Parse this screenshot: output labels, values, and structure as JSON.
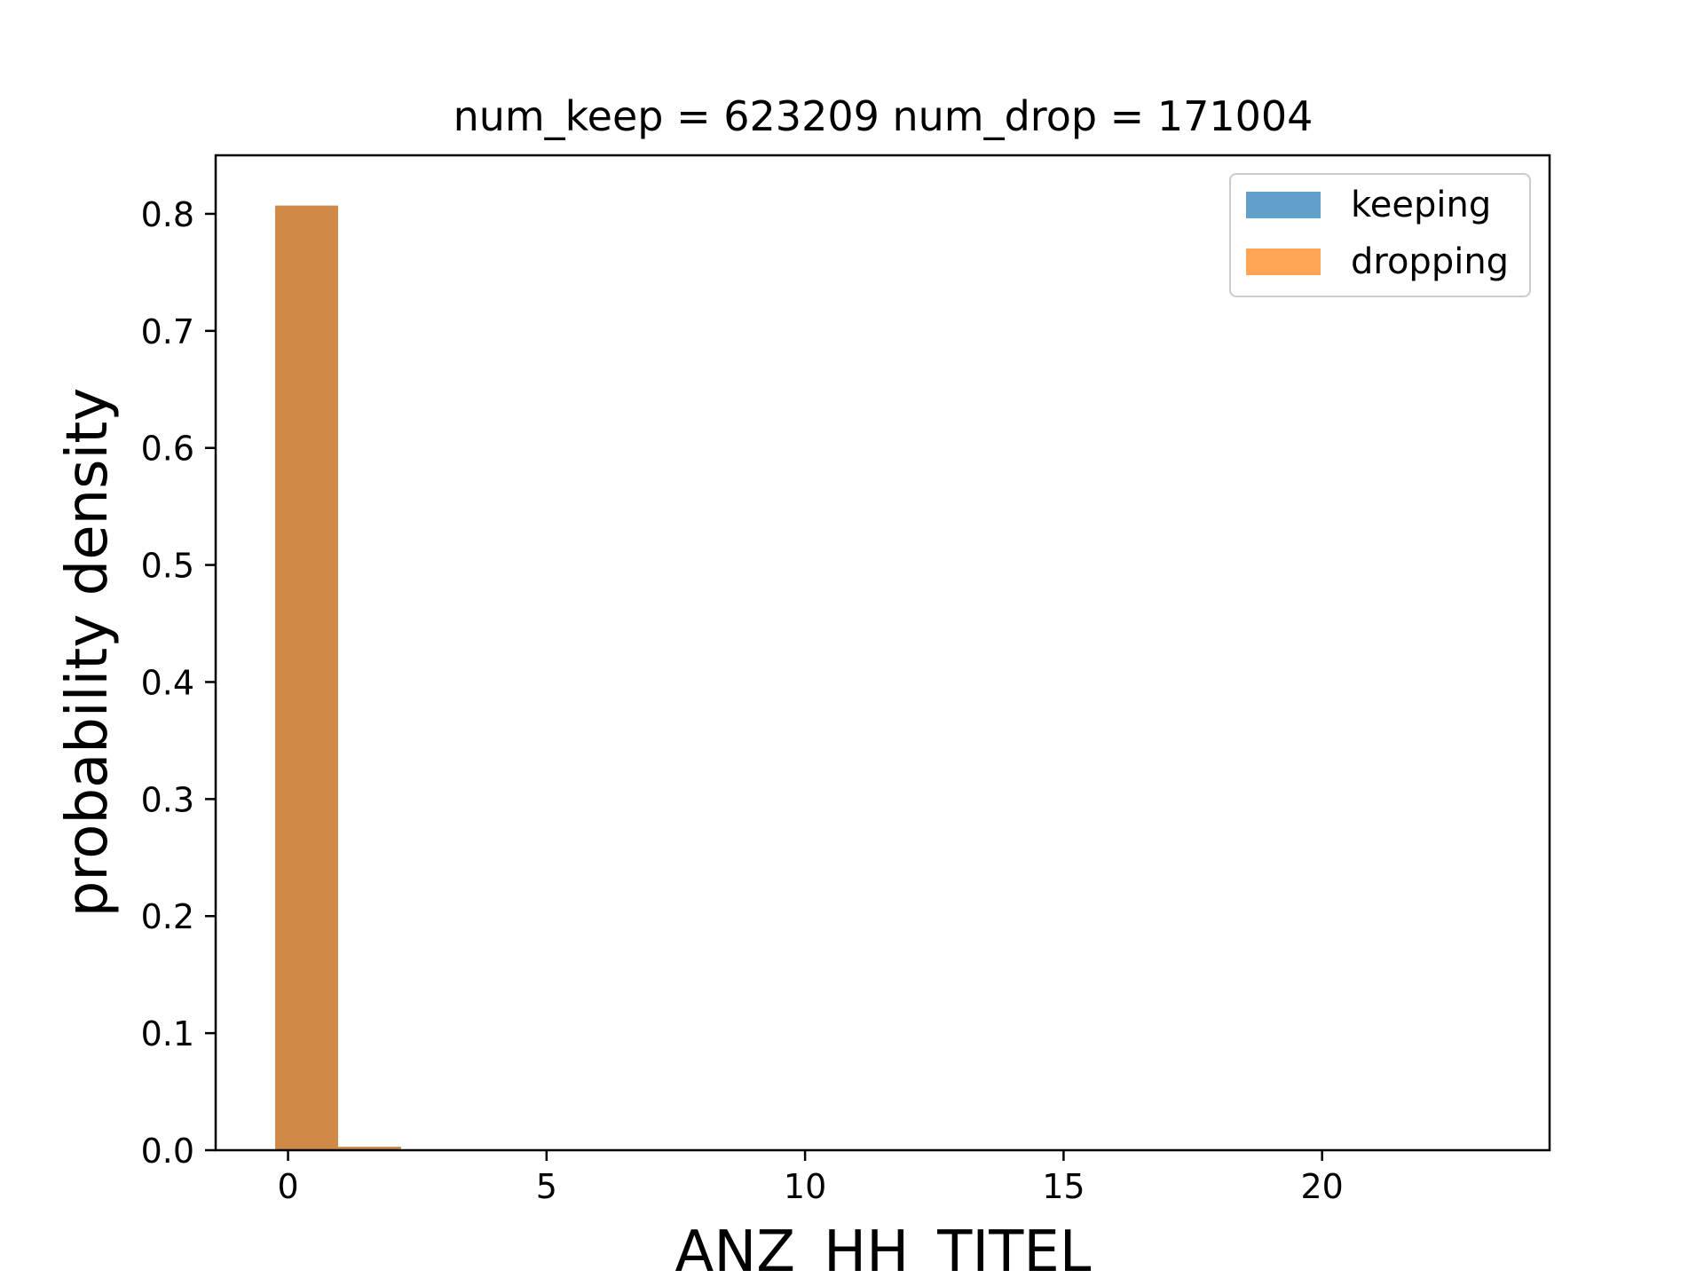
{
  "chart_data": {
    "type": "bar",
    "title": "num_keep = 623209  num_drop = 171004",
    "xlabel": "ANZ_HH_TITEL",
    "ylabel": "probability density",
    "xlim": [
      -1.4,
      24.4
    ],
    "ylim": [
      0,
      0.85
    ],
    "xticks": [
      0,
      5,
      10,
      15,
      20
    ],
    "yticks": [
      0.0,
      0.1,
      0.2,
      0.3,
      0.4,
      0.5,
      0.6,
      0.7,
      0.8
    ],
    "legend_position": "top-right",
    "grid": false,
    "bin_edges": [
      -0.25,
      0.967,
      2.185
    ],
    "series": [
      {
        "name": "keeping",
        "color": "#1f77b4",
        "opacity": 0.7,
        "values": [
          0.807,
          0.0029
        ]
      },
      {
        "name": "dropping",
        "color": "#ff7f0e",
        "opacity": 0.7,
        "values": [
          0.807,
          0.0029
        ]
      }
    ]
  }
}
